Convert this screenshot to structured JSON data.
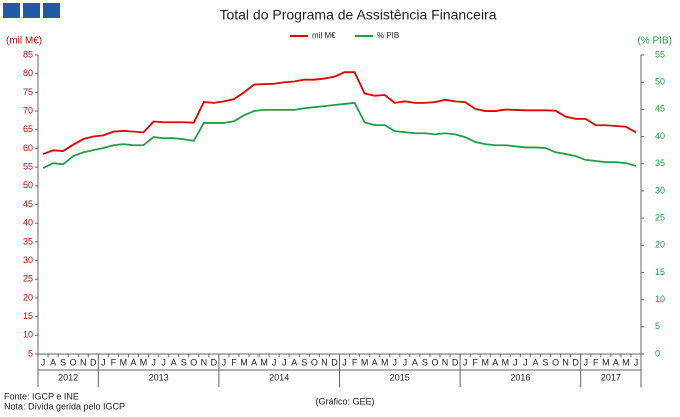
{
  "chart_data": {
    "type": "line",
    "title": "Total do Programa de Assistência Financeira",
    "ylabel": "(mil M€)",
    "y2label": "(% PIB)",
    "notes": [
      "Fonte: IGCP e INE",
      "Nota: Dívida gerida pelo IGCP"
    ],
    "credit": "(Gráfico: GEE)",
    "categories": [
      "J",
      "A",
      "S",
      "O",
      "N",
      "D",
      "J",
      "F",
      "M",
      "A",
      "M",
      "J",
      "J",
      "A",
      "S",
      "O",
      "N",
      "D",
      "J",
      "F",
      "M",
      "A",
      "M",
      "J",
      "J",
      "A",
      "S",
      "O",
      "N",
      "D",
      "J",
      "F",
      "M",
      "A",
      "M",
      "J",
      "J",
      "A",
      "S",
      "O",
      "N",
      "D",
      "J",
      "F",
      "M",
      "A",
      "M",
      "J",
      "J",
      "A",
      "S",
      "O",
      "N",
      "D",
      "J",
      "F",
      "M",
      "A",
      "M",
      "J"
    ],
    "years": [
      "2012",
      "2013",
      "2014",
      "2015",
      "2016",
      "2017"
    ],
    "series": [
      {
        "name": "mil M€",
        "color": "#e00000",
        "values": [
          58.5,
          59.5,
          59.3,
          61,
          62.5,
          63.2,
          63.5,
          64.5,
          64.7,
          64.5,
          64.3,
          67.2,
          67,
          67,
          67,
          66.9,
          72.4,
          72.2,
          72.6,
          73.2,
          75,
          77.1,
          77.2,
          77.3,
          77.7,
          77.9,
          78.4,
          78.4,
          78.7,
          79.2,
          80.4,
          80.4,
          74.7,
          74.1,
          74.3,
          72.2,
          72.6,
          72.2,
          72.2,
          72.4,
          73,
          72.6,
          72.4,
          70.6,
          70,
          70,
          70.4,
          70.3,
          70.2,
          70.2,
          70.2,
          70.1,
          68.5,
          67.9,
          67.9,
          66.2,
          66.2,
          66,
          65.8,
          64.3
        ]
      },
      {
        "name": "% PIB",
        "color": "#1fa046",
        "axis": "y2",
        "values": [
          34.2,
          35.1,
          34.9,
          36.4,
          37.1,
          37.5,
          37.9,
          38.4,
          38.6,
          38.4,
          38.4,
          39.9,
          39.7,
          39.7,
          39.5,
          39.2,
          42.5,
          42.5,
          42.5,
          42.8,
          43.9,
          44.7,
          44.9,
          44.9,
          44.9,
          44.9,
          45.2,
          45.4,
          45.6,
          45.8,
          46,
          46.2,
          42.6,
          42.1,
          42.1,
          41,
          40.8,
          40.6,
          40.6,
          40.4,
          40.6,
          40.4,
          39.9,
          39,
          38.6,
          38.4,
          38.4,
          38.2,
          38,
          38,
          37.9,
          37.1,
          36.8,
          36.4,
          35.7,
          35.5,
          35.3,
          35.3,
          35.1,
          34.6
        ]
      }
    ],
    "ylim": [
      5,
      85
    ],
    "yticks": [
      5,
      10,
      15,
      20,
      25,
      30,
      35,
      40,
      45,
      50,
      55,
      60,
      65,
      70,
      75,
      80,
      85
    ],
    "y2lim": [
      0,
      55
    ],
    "y2ticks": [
      0,
      5,
      10,
      15,
      20,
      25,
      30,
      35,
      40,
      45,
      50,
      55
    ]
  }
}
